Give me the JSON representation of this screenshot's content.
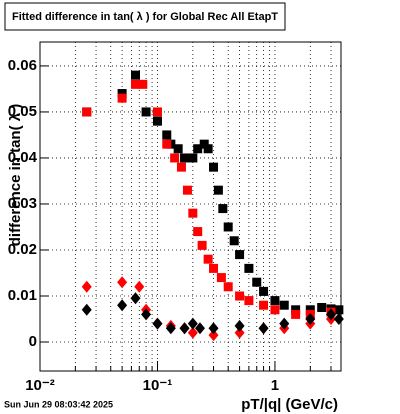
{
  "chart_data": {
    "type": "scatter",
    "title": "Fitted difference in tan( λ ) for Global Rec All EtapT",
    "x_label": "pT/|q| (GeV/c)",
    "y_label": "difference in tan( λ )",
    "timestamp": "Sun Jun 29 08:03:42 2025",
    "xscale": "log",
    "xlim": [
      0.01,
      3.65
    ],
    "ylim": [
      -0.0063,
      0.0652
    ],
    "xticks": [
      {
        "value": 0.01,
        "label": "10⁻²"
      },
      {
        "value": 0.1,
        "label": "10⁻¹"
      },
      1
    ],
    "xminorticks": [
      0.02,
      0.03,
      0.04,
      0.05,
      0.06,
      0.07,
      0.08,
      0.09,
      0.2,
      0.3,
      0.4,
      0.5,
      0.6,
      0.7,
      0.8,
      0.9,
      2,
      3
    ],
    "yticks": [
      0,
      0.01,
      0.02,
      0.03,
      0.04,
      0.05,
      0.06
    ],
    "grid": true,
    "series": [
      {
        "color": "#000000",
        "marker": "square",
        "x": [
          0.025,
          0.05,
          0.065,
          0.08,
          0.1,
          0.12,
          0.13,
          0.15,
          0.17,
          0.2,
          0.22,
          0.25,
          0.27,
          0.3,
          0.33,
          0.36,
          0.4,
          0.45,
          0.5,
          0.6,
          0.7,
          0.8,
          1.0,
          1.2,
          1.5,
          2,
          2.5,
          3,
          3.5
        ],
        "values": [
          0.05,
          0.054,
          0.058,
          0.05,
          0.048,
          0.045,
          0.043,
          0.042,
          0.04,
          0.04,
          0.042,
          0.043,
          0.042,
          0.038,
          0.033,
          0.029,
          0.025,
          0.022,
          0.019,
          0.016,
          0.013,
          0.011,
          0.009,
          0.008,
          0.007,
          0.007,
          0.0075,
          0.0072,
          0.007
        ]
      },
      {
        "color": "#ff0000",
        "marker": "square",
        "x": [
          0.025,
          0.05,
          0.065,
          0.075,
          0.1,
          0.12,
          0.14,
          0.16,
          0.18,
          0.2,
          0.22,
          0.24,
          0.27,
          0.3,
          0.35,
          0.4,
          0.5,
          0.6,
          0.8,
          1.0,
          1.5,
          2,
          3
        ],
        "values": [
          0.05,
          0.053,
          0.056,
          0.056,
          0.05,
          0.043,
          0.04,
          0.038,
          0.033,
          0.028,
          0.024,
          0.021,
          0.018,
          0.016,
          0.014,
          0.012,
          0.01,
          0.009,
          0.008,
          0.007,
          0.006,
          0.006,
          0.0065
        ]
      },
      {
        "color": "#ff0000",
        "marker": "diamond",
        "x": [
          0.025,
          0.05,
          0.07,
          0.08,
          0.1,
          0.13,
          0.17,
          0.2,
          0.3,
          0.5,
          0.8,
          1.2,
          2,
          3
        ],
        "values": [
          0.012,
          0.013,
          0.012,
          0.007,
          0.004,
          0.0035,
          0.003,
          0.002,
          0.0015,
          0.002,
          0.003,
          0.003,
          0.004,
          0.005
        ]
      },
      {
        "color": "#000000",
        "marker": "diamond",
        "x": [
          0.025,
          0.05,
          0.065,
          0.08,
          0.1,
          0.13,
          0.17,
          0.2,
          0.23,
          0.3,
          0.5,
          0.8,
          1.2,
          2,
          3,
          3.5
        ],
        "values": [
          0.007,
          0.008,
          0.0095,
          0.006,
          0.004,
          0.003,
          0.003,
          0.004,
          0.003,
          0.003,
          0.0035,
          0.003,
          0.004,
          0.005,
          0.006,
          0.005
        ]
      }
    ]
  }
}
